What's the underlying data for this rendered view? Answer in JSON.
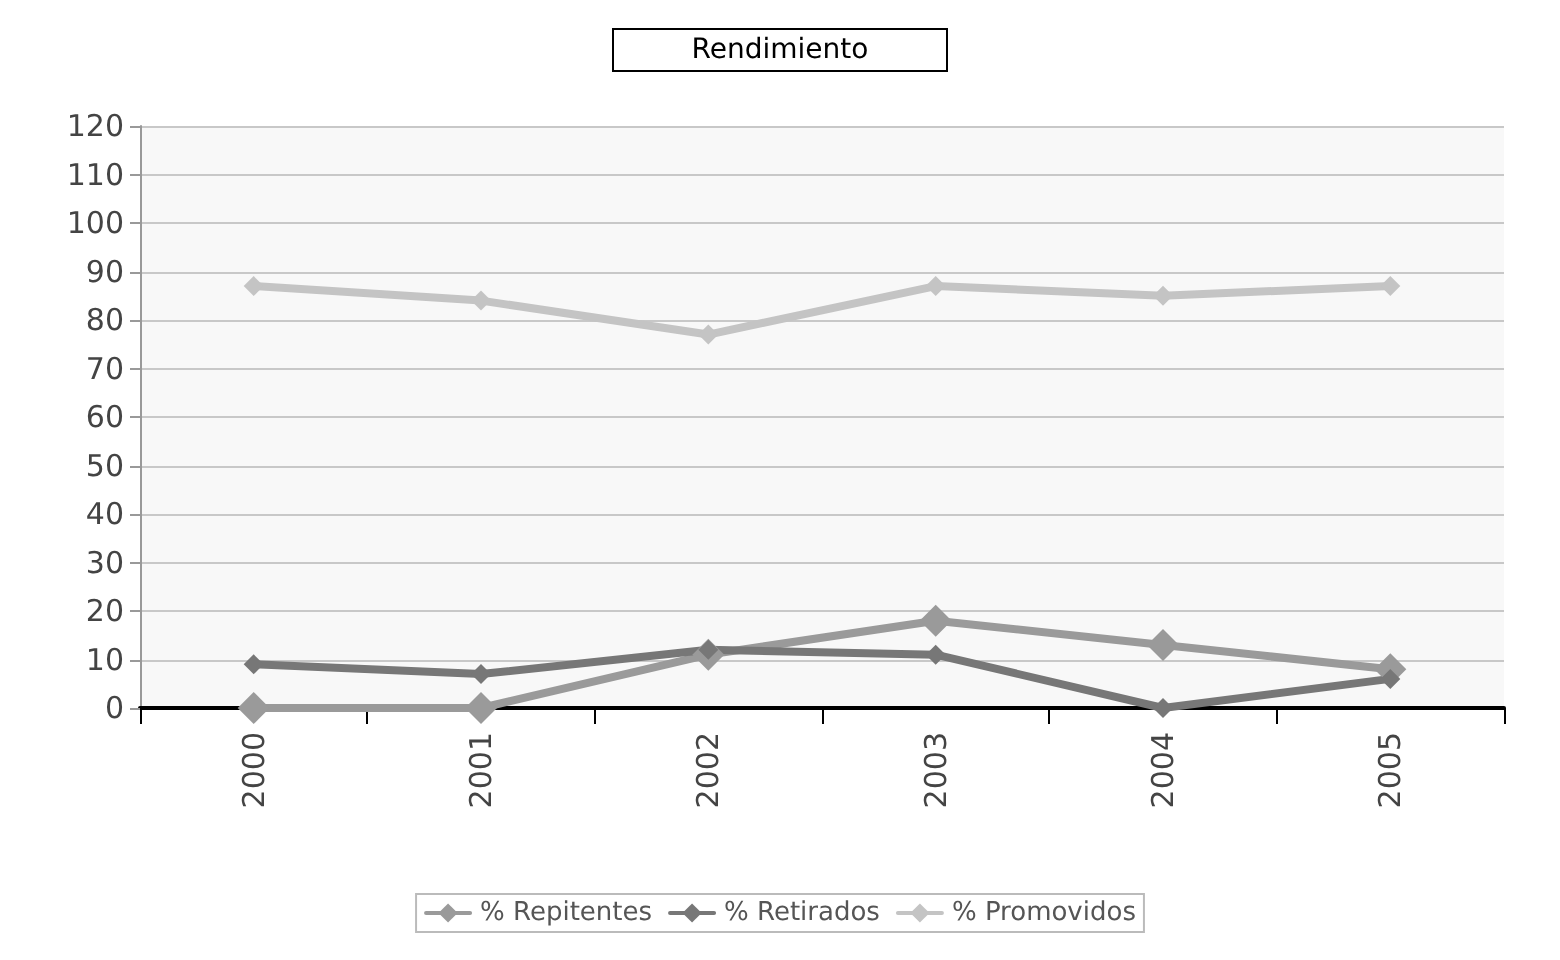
{
  "chart_data": {
    "type": "line",
    "title": "Rendimiento",
    "categories": [
      "2000",
      "2001",
      "2002",
      "2003",
      "2004",
      "2005"
    ],
    "series": [
      {
        "name": "% Repitentes",
        "color": "#9a9a9a",
        "values": [
          0,
          0,
          11,
          18,
          13,
          8
        ]
      },
      {
        "name": "% Retirados",
        "color": "#777777",
        "values": [
          9,
          7,
          12,
          11,
          0,
          6
        ]
      },
      {
        "name": "% Promovidos",
        "color": "#c4c4c4",
        "values": [
          87,
          84,
          77,
          87,
          85,
          87
        ]
      }
    ],
    "ylim": [
      0,
      120
    ],
    "yticks": [
      0,
      10,
      20,
      30,
      40,
      50,
      60,
      70,
      80,
      90,
      100,
      110,
      120
    ],
    "grid": "y",
    "legend": "bottom",
    "marker": "diamond",
    "line_style": "solid"
  }
}
